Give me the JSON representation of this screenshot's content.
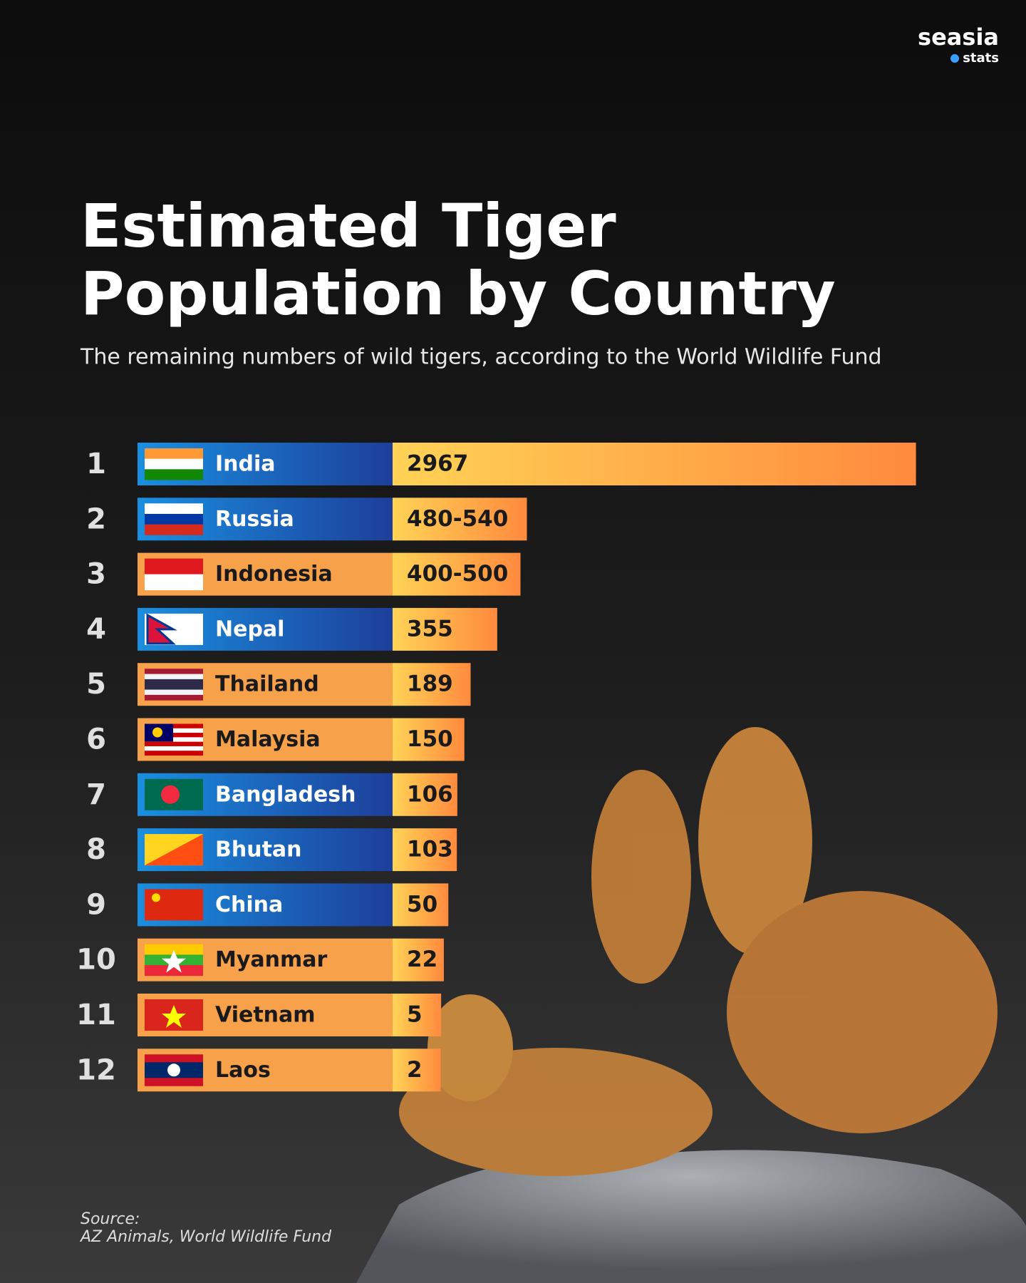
{
  "logo": {
    "name": "seasia",
    "tag": "stats"
  },
  "chart_data": {
    "type": "bar",
    "orientation": "horizontal",
    "title": "Estimated Tiger Population by Country",
    "subtitle": "The remaining numbers of wild tigers, according to the World Wildlife Fund",
    "ranks": [
      1,
      2,
      3,
      4,
      5,
      6,
      7,
      8,
      9,
      10,
      11,
      12
    ],
    "categories": [
      "India",
      "Russia",
      "Indonesia",
      "Nepal",
      "Thailand",
      "Malaysia",
      "Bangladesh",
      "Bhutan",
      "China",
      "Myanmar",
      "Vietnam",
      "Laos"
    ],
    "values": [
      2967,
      [
        480,
        540
      ],
      [
        400,
        500
      ],
      355,
      189,
      150,
      106,
      103,
      50,
      22,
      5,
      2
    ],
    "value_labels": [
      "2967",
      "480-540",
      "400-500",
      "355",
      "189",
      "150",
      "106",
      "103",
      "50",
      "22",
      "5",
      "2"
    ],
    "label_colors": [
      "#1d5fc2",
      "#1d5fc2",
      "#f7a14a",
      "#1d5fc2",
      "#f7a14a",
      "#f7a14a",
      "#1d5fc2",
      "#1d5fc2",
      "#1d5fc2",
      "#f7a14a",
      "#f7a14a",
      "#f7a14a"
    ],
    "color": "#ffb347",
    "source": {
      "heading": "Source:",
      "text": "AZ Animals, World Wildlife Fund"
    }
  }
}
